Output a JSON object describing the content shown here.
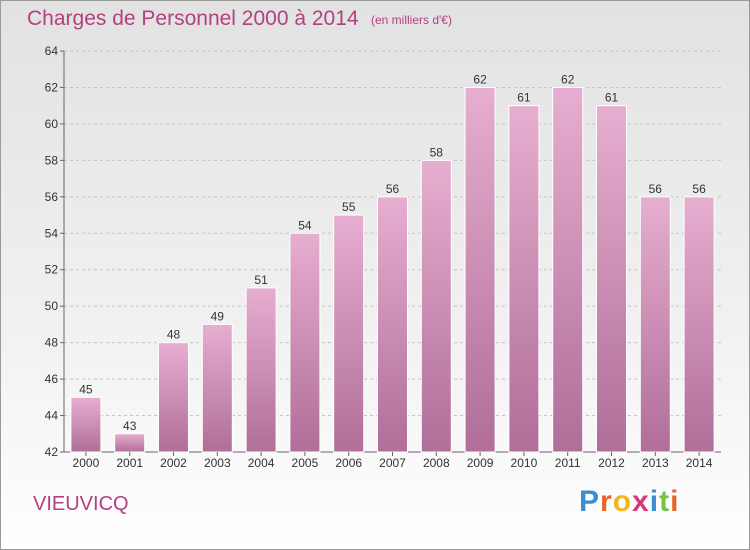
{
  "header": {
    "title": "Charges de Personnel 2000 à 2014",
    "subtitle": "(en milliers d'€)"
  },
  "footer": {
    "commune": "VIEUVICQ",
    "brand": "Proxiti"
  },
  "colors": {
    "accent": "#b3407f",
    "bar_top": "#e6aed0",
    "bar_bottom": "#b06e98"
  },
  "chart_data": {
    "type": "bar",
    "title": "Charges de Personnel 2000 à 2014",
    "subtitle": "(en milliers d'€)",
    "xlabel": "",
    "ylabel": "",
    "categories": [
      "2000",
      "2001",
      "2002",
      "2003",
      "2004",
      "2005",
      "2006",
      "2007",
      "2008",
      "2009",
      "2010",
      "2011",
      "2012",
      "2013",
      "2014"
    ],
    "values": [
      45,
      43,
      48,
      49,
      51,
      54,
      55,
      56,
      58,
      62,
      61,
      62,
      61,
      56,
      56
    ],
    "ylim": [
      42,
      64
    ],
    "yticks": [
      42,
      44,
      46,
      48,
      50,
      52,
      54,
      56,
      58,
      60,
      62,
      64
    ],
    "grid": "horizontal-dashed",
    "data_labels": true
  }
}
